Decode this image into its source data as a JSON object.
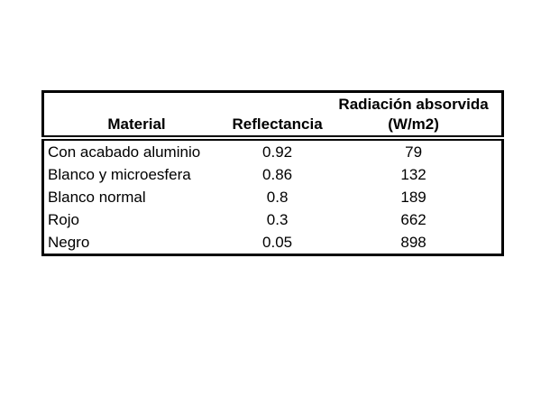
{
  "slide": {
    "background_color": "#ffffff",
    "text_color": "#000000",
    "border_color": "#000000"
  },
  "table": {
    "headers": {
      "material": "Material",
      "reflectancia": "Reflectancia",
      "radiacion_line1": "Radiación absorvida",
      "radiacion_line2": "(W/m2)"
    },
    "rows": [
      [
        "Con acabado aluminio",
        "0.92",
        "79"
      ],
      [
        "Blanco y microesfera",
        "0.86",
        "132"
      ],
      [
        "Blanco normal",
        "0.8",
        "189"
      ],
      [
        "Rojo",
        "0.3",
        "662"
      ],
      [
        "Negro",
        "0.05",
        "898"
      ]
    ]
  },
  "chart_data": {
    "type": "table",
    "title": "",
    "columns": [
      "Material",
      "Reflectancia",
      "Radiación absorvida (W/m2)"
    ],
    "rows": [
      [
        "Con acabado aluminio",
        0.92,
        79
      ],
      [
        "Blanco y microesfera",
        0.86,
        132
      ],
      [
        "Blanco normal",
        0.8,
        189
      ],
      [
        "Rojo",
        0.3,
        662
      ],
      [
        "Negro",
        0.05,
        898
      ]
    ],
    "layout": {
      "header_bold": true,
      "header_rule": "double",
      "outer_border": "solid-black",
      "internal_gridlines": false,
      "first_column_align": "left",
      "value_columns_align": "center"
    }
  }
}
